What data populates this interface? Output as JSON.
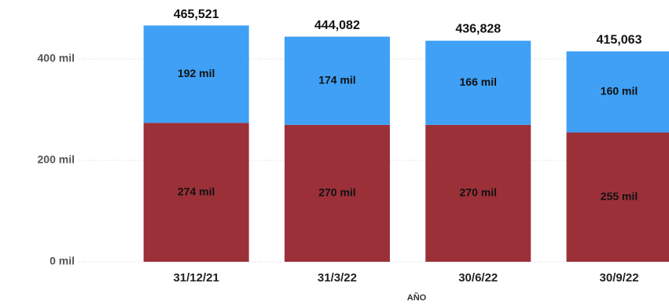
{
  "chart_data": {
    "type": "stacked_bar",
    "x_label": "AÑO",
    "categories": [
      "31/12/21",
      "31/3/22",
      "30/6/22",
      "30/9/22"
    ],
    "series": [
      {
        "color": "#9b3039",
        "values": [
          274000,
          270000,
          270000,
          255000
        ],
        "value_labels": [
          "274 mil",
          "270 mil",
          "270 mil",
          "255 mil"
        ]
      },
      {
        "color": "#3fa0f5",
        "values": [
          192000,
          174000,
          166000,
          160000
        ],
        "value_labels": [
          "192 mil",
          "174 mil",
          "166 mil",
          "160 mil"
        ]
      }
    ],
    "totals": {
      "values": [
        465521,
        444082,
        436828,
        415063
      ],
      "value_labels": [
        "465,521",
        "444,082",
        "436,828",
        "415,063"
      ]
    },
    "ylim": [
      0,
      500000
    ],
    "yticks": [
      {
        "value": 0,
        "label": "0 mil"
      },
      {
        "value": 200000,
        "label": "200 mil"
      },
      {
        "value": 400000,
        "label": "400 mil"
      }
    ],
    "grid": true
  }
}
